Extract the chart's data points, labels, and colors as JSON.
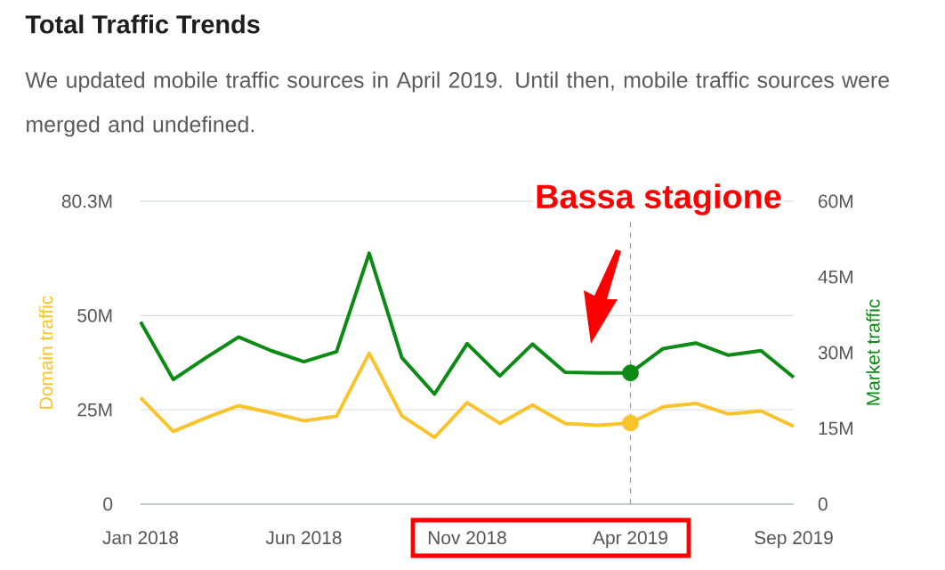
{
  "chart_data": {
    "type": "line",
    "title": "Total Traffic Trends",
    "subtitle": "We updated mobile traffic sources in April 2019. Until then, mobile traffic sources were merged and undefined.",
    "ylabel": "Domain traffic",
    "y2label": "Market traffic",
    "x": [
      "2018-01",
      "2018-02",
      "2018-03",
      "2018-04",
      "2018-05",
      "2018-06",
      "2018-07",
      "2018-08",
      "2018-09",
      "2018-10",
      "2018-11",
      "2018-12",
      "2019-01",
      "2019-02",
      "2019-03",
      "2019-04",
      "2019-05",
      "2019-06",
      "2019-07",
      "2019-08",
      "2019-09"
    ],
    "xlim": [
      "2018-01",
      "2019-09"
    ],
    "xticks": [
      {
        "value": "2018-01",
        "label": "Jan 2018"
      },
      {
        "value": "2018-06",
        "label": "Jun 2018"
      },
      {
        "value": "2018-11",
        "label": "Nov 2018"
      },
      {
        "value": "2019-04",
        "label": "Apr 2019"
      },
      {
        "value": "2019-09",
        "label": "Sep 2019"
      }
    ],
    "ylim": [
      0,
      80.3
    ],
    "yticks": [
      0,
      {
        "value": 25,
        "label": "25M"
      },
      {
        "value": 50,
        "label": "50M"
      },
      {
        "value": 80.3,
        "label": "80.3M"
      }
    ],
    "y2lim": [
      0,
      60
    ],
    "y2ticks": [
      0,
      {
        "value": 15,
        "label": "15M"
      },
      {
        "value": 30,
        "label": "30M"
      },
      {
        "value": 45,
        "label": "45M"
      },
      {
        "value": 60,
        "label": "60M"
      }
    ],
    "grid": "y",
    "series": [
      {
        "axis": "y",
        "color": "#f9c32b",
        "values": [
          28.2,
          19.3,
          22.9,
          26.1,
          24.2,
          22.1,
          23.3,
          40.0,
          23.4,
          17.7,
          26.9,
          21.4,
          26.3,
          21.4,
          20.9,
          21.5,
          25.8,
          26.7,
          23.9,
          24.7,
          20.6
        ]
      },
      {
        "axis": "y2",
        "color": "#0b8a14",
        "values": [
          36.1,
          24.7,
          29.0,
          33.1,
          30.4,
          28.2,
          30.2,
          49.7,
          29.0,
          21.8,
          31.8,
          25.4,
          31.7,
          26.1,
          26.0,
          26.0,
          30.8,
          31.9,
          29.5,
          30.4,
          25.1
        ]
      },
      {
        "type": "scatter",
        "axis": "y",
        "color": "#f9c32b",
        "x": [
          "2019-04"
        ],
        "values": [
          21.5
        ]
      },
      {
        "type": "scatter",
        "axis": "y2",
        "color": "#0b8a14",
        "x": [
          "2019-04"
        ],
        "values": [
          26.0
        ]
      }
    ],
    "ref_lines": [
      {
        "axis": "x",
        "value": "2019-04",
        "color": "#999999",
        "line_style": "dashed"
      }
    ],
    "annotations": [
      "Bassa stagione"
    ]
  }
}
